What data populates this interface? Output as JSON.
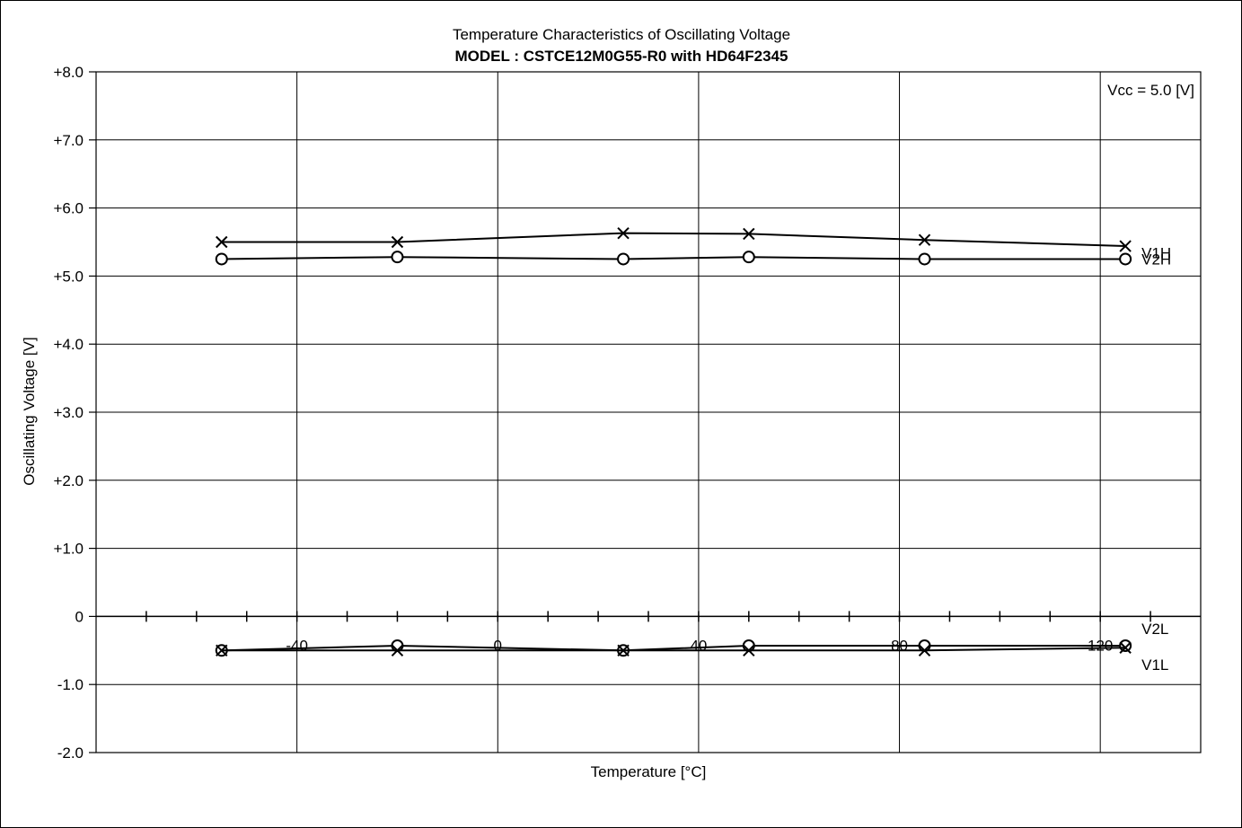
{
  "chart_data": {
    "type": "line",
    "title": "Temperature Characteristics of Oscillating Voltage",
    "subtitle": "MODEL : CSTCE12M0G55-R0 with HD64F2345",
    "annotation": "Vcc = 5.0 [V]",
    "xlabel": "Temperature [°C]",
    "ylabel": "Oscillating Voltage [V]",
    "xlim": [
      -80,
      140
    ],
    "ylim": [
      -2,
      8
    ],
    "x_tick_labels": [
      {
        "value": -40,
        "label": "-40"
      },
      {
        "value": 0,
        "label": "0"
      },
      {
        "value": 40,
        "label": "40"
      },
      {
        "value": 80,
        "label": "80"
      },
      {
        "value": 120,
        "label": "120"
      }
    ],
    "y_tick_labels": [
      {
        "value": 8,
        "label": "+8.0"
      },
      {
        "value": 7,
        "label": "+7.0"
      },
      {
        "value": 6,
        "label": "+6.0"
      },
      {
        "value": 5,
        "label": "+5.0"
      },
      {
        "value": 4,
        "label": "+4.0"
      },
      {
        "value": 3,
        "label": "+3.0"
      },
      {
        "value": 2,
        "label": "+2.0"
      },
      {
        "value": 1,
        "label": "+1.0"
      },
      {
        "value": 0,
        "label": "0"
      },
      {
        "value": -1,
        "label": "-1.0"
      },
      {
        "value": -2,
        "label": "-2.0"
      }
    ],
    "grid": true,
    "series": [
      {
        "name": "V1H",
        "marker": "x",
        "x": [
          -55,
          -20,
          25,
          50,
          85,
          125
        ],
        "y": [
          5.5,
          5.5,
          5.63,
          5.62,
          5.53,
          5.44
        ]
      },
      {
        "name": "V2H",
        "marker": "o",
        "x": [
          -55,
          -20,
          25,
          50,
          85,
          125
        ],
        "y": [
          5.25,
          5.28,
          5.25,
          5.28,
          5.25,
          5.25
        ]
      },
      {
        "name": "V2L",
        "marker": "o",
        "x": [
          -55,
          -20,
          25,
          50,
          85,
          125
        ],
        "y": [
          -0.5,
          -0.43,
          -0.5,
          -0.43,
          -0.43,
          -0.43
        ]
      },
      {
        "name": "V1L",
        "marker": "x",
        "x": [
          -55,
          -20,
          25,
          50,
          85,
          125
        ],
        "y": [
          -0.5,
          -0.5,
          -0.5,
          -0.5,
          -0.5,
          -0.46
        ]
      }
    ],
    "series_label_offsets": {
      "V1H": -0.1,
      "V2H": 0.0,
      "V2L": 0.25,
      "V1L": -0.25
    }
  }
}
